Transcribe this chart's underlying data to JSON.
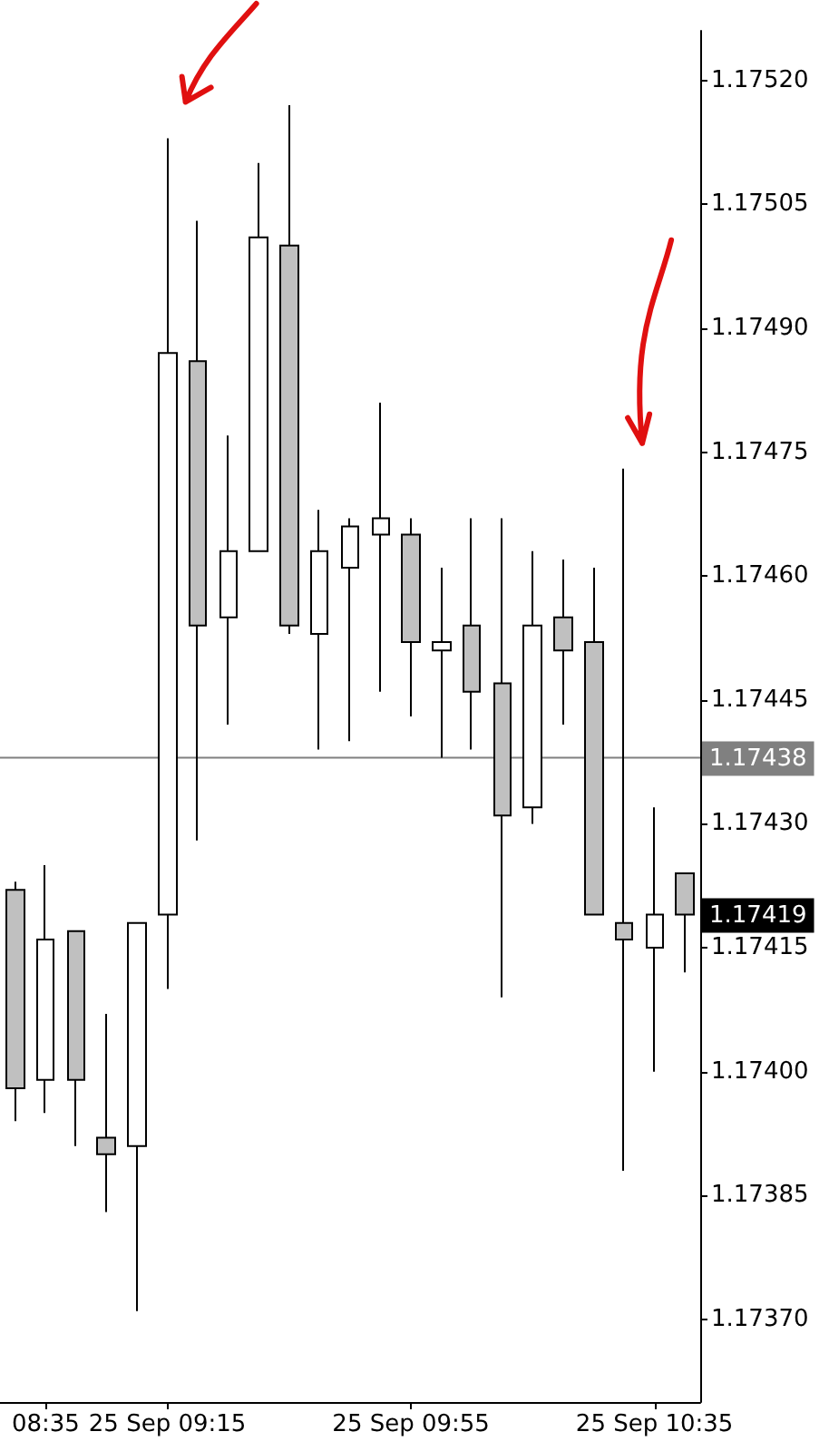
{
  "chart_data": {
    "type": "candlestick",
    "categories": [
      null,
      "08:35",
      null,
      null,
      null,
      "25 Sep 09:15",
      null,
      null,
      null,
      null,
      null,
      null,
      null,
      "25 Sep 09:55",
      null,
      null,
      null,
      null,
      null,
      null,
      null,
      "25 Sep 10:35",
      null
    ],
    "ohlc": [
      [
        1.17422,
        1.17423,
        1.17394,
        1.17398
      ],
      [
        1.17399,
        1.17425,
        1.17395,
        1.17416
      ],
      [
        1.17417,
        1.17417,
        1.17391,
        1.17399
      ],
      [
        1.17392,
        1.17407,
        1.17383,
        1.1739
      ],
      [
        1.17391,
        1.17418,
        1.17371,
        1.17418
      ],
      [
        1.17419,
        1.17513,
        1.1741,
        1.17487
      ],
      [
        1.17486,
        1.17503,
        1.17428,
        1.17454
      ],
      [
        1.17455,
        1.17477,
        1.17442,
        1.17463
      ],
      [
        1.17463,
        1.1751,
        1.17463,
        1.17501
      ],
      [
        1.175,
        1.17517,
        1.17453,
        1.17454
      ],
      [
        1.17453,
        1.17468,
        1.17439,
        1.17463
      ],
      [
        1.17461,
        1.17467,
        1.1744,
        1.17466
      ],
      [
        1.17465,
        1.17481,
        1.17446,
        1.17467
      ],
      [
        1.17465,
        1.17467,
        1.17443,
        1.17452
      ],
      [
        1.17451,
        1.17461,
        1.17438,
        1.17452
      ],
      [
        1.17454,
        1.17467,
        1.17439,
        1.17446
      ],
      [
        1.17447,
        1.17467,
        1.17409,
        1.17431
      ],
      [
        1.17432,
        1.17463,
        1.1743,
        1.17454
      ],
      [
        1.17455,
        1.17462,
        1.17442,
        1.17451
      ],
      [
        1.17452,
        1.17461,
        1.17419,
        1.17419
      ],
      [
        1.17418,
        1.17473,
        1.17388,
        1.17416
      ],
      [
        1.17415,
        1.17432,
        1.174,
        1.17419
      ],
      [
        1.17424,
        1.17424,
        1.17412,
        1.17419
      ]
    ],
    "colors": [
      "#c0c0c0",
      "#ffffff",
      "#c0c0c0",
      "#c0c0c0",
      "#ffffff",
      "#ffffff",
      "#c0c0c0",
      "#ffffff",
      "#ffffff",
      "#c0c0c0",
      "#ffffff",
      "#ffffff",
      "#ffffff",
      "#c0c0c0",
      "#ffffff",
      "#c0c0c0",
      "#c0c0c0",
      "#ffffff",
      "#c0c0c0",
      "#c0c0c0",
      "#c0c0c0",
      "#ffffff",
      "#c0c0c0"
    ],
    "ylim": [
      1.1736,
      1.17526
    ],
    "yticks": [
      {
        "value": 1.1737,
        "label": "1.17370"
      },
      1.17385,
      {
        "value": 1.174,
        "label": "1.17400"
      },
      1.17415,
      {
        "value": 1.1743,
        "label": "1.17430"
      },
      1.17445,
      {
        "value": 1.1746,
        "label": "1.17460"
      },
      1.17475,
      {
        "value": 1.1749,
        "label": "1.17490"
      },
      1.17505,
      {
        "value": 1.1752,
        "label": "1.17520"
      }
    ],
    "ref_lines": [
      {
        "axis": "y",
        "value": 1.17438,
        "label": "1.17438",
        "color": "#808080"
      }
    ],
    "annotations": [
      "1.17419"
    ],
    "grid": false
  }
}
